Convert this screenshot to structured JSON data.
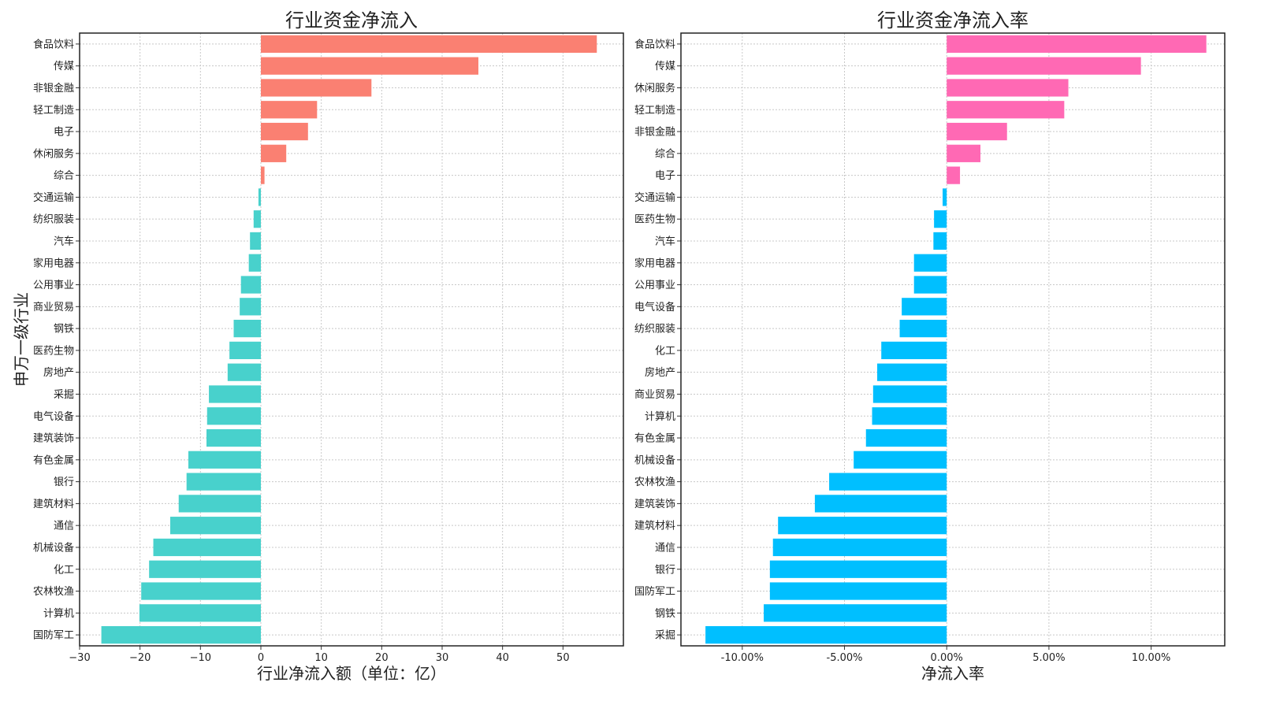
{
  "chart_data": [
    {
      "type": "bar",
      "orientation": "horizontal",
      "title": "行业资金净流入",
      "xlabel": "行业净流入额（单位：亿）",
      "ylabel": "申万一级行业",
      "xlim": [
        -30,
        60
      ],
      "xticks": [
        -30,
        -20,
        -10,
        0,
        10,
        20,
        30,
        40,
        50
      ],
      "xtick_labels": [
        "−30",
        "−20",
        "−10",
        "0",
        "10",
        "20",
        "30",
        "40",
        "50"
      ],
      "grid": true,
      "positive_color": "#fa8072",
      "negative_color": "#48d1cc",
      "categories": [
        "食品饮料",
        "传媒",
        "非银金融",
        "轻工制造",
        "电子",
        "休闲服务",
        "综合",
        "交通运输",
        "纺织服装",
        "汽车",
        "家用电器",
        "公用事业",
        "商业贸易",
        "钢铁",
        "医药生物",
        "房地产",
        "采掘",
        "电气设备",
        "建筑装饰",
        "有色金属",
        "银行",
        "建筑材料",
        "通信",
        "机械设备",
        "化工",
        "农林牧渔",
        "计算机",
        "国防军工"
      ],
      "values": [
        55.6,
        36.0,
        18.3,
        9.3,
        7.8,
        4.2,
        0.6,
        -0.4,
        -1.2,
        -1.8,
        -2.0,
        -3.3,
        -3.5,
        -4.5,
        -5.2,
        -5.5,
        -8.6,
        -8.9,
        -9.0,
        -12.0,
        -12.3,
        -13.6,
        -15.0,
        -17.8,
        -18.5,
        -19.8,
        -20.1,
        -26.4
      ]
    },
    {
      "type": "bar",
      "orientation": "horizontal",
      "title": "行业资金净流入率",
      "xlabel": "净流入率",
      "ylabel": "",
      "xlim": [
        -13.0,
        13.6
      ],
      "xticks": [
        -10,
        -5,
        0,
        5,
        10
      ],
      "xtick_labels": [
        "-10.00%",
        "-5.00%",
        "0.00%",
        "5.00%",
        "10.00%"
      ],
      "grid": true,
      "positive_color": "#ff69b4",
      "negative_color": "#00bfff",
      "categories": [
        "食品饮料",
        "传媒",
        "休闲服务",
        "轻工制造",
        "非银金融",
        "综合",
        "电子",
        "交通运输",
        "医药生物",
        "汽车",
        "家用电器",
        "公用事业",
        "电气设备",
        "纺织服装",
        "化工",
        "房地产",
        "商业贸易",
        "计算机",
        "有色金属",
        "机械设备",
        "农林牧渔",
        "建筑装饰",
        "建筑材料",
        "通信",
        "银行",
        "国防军工",
        "钢铁",
        "采掘"
      ],
      "values": [
        12.7,
        9.5,
        5.95,
        5.75,
        2.95,
        1.65,
        0.65,
        -0.2,
        -0.62,
        -0.65,
        -1.6,
        -1.6,
        -2.2,
        -2.3,
        -3.2,
        -3.4,
        -3.6,
        -3.65,
        -3.95,
        -4.55,
        -5.75,
        -6.45,
        -8.25,
        -8.5,
        -8.65,
        -8.65,
        -8.95,
        -11.8
      ]
    }
  ]
}
